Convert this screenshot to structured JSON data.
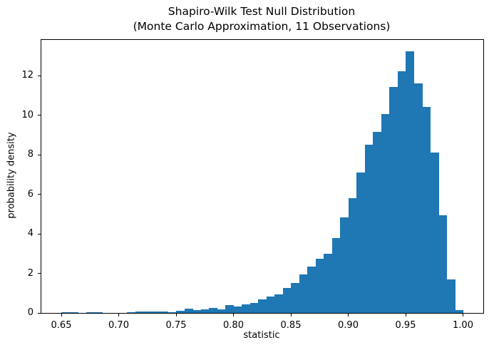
{
  "chart_data": {
    "type": "bar",
    "variant": "histogram",
    "title": "Shapiro-Wilk Test Null Distribution\n(Monte Carlo Approximation, 11 Observations)",
    "xlabel": "statistic",
    "ylabel": "probability density",
    "bar_color": "#1f77b4",
    "background_color": "#ffffff",
    "spine_color": "#000000",
    "grid": false,
    "bin_start": 0.65,
    "bin_width": 0.0071428,
    "bin_count": 49,
    "heights": [
      0.05,
      0.05,
      0,
      0.04,
      0.04,
      0,
      0,
      0,
      0.04,
      0.07,
      0.07,
      0.08,
      0.07,
      0.03,
      0.1,
      0.2,
      0.13,
      0.19,
      0.25,
      0.19,
      0.4,
      0.33,
      0.42,
      0.5,
      0.7,
      0.82,
      0.94,
      1.26,
      1.52,
      1.93,
      2.36,
      2.74,
      2.99,
      3.77,
      4.85,
      5.81,
      7.1,
      8.52,
      9.15,
      10.05,
      11.44,
      12.22,
      13.24,
      11.62,
      10.42,
      8.1,
      4.95,
      1.7,
      0.16
    ],
    "xlim": [
      0.6326,
      1.0177
    ],
    "ylim": [
      0,
      13.81
    ],
    "xticks": {
      "values": [
        0.65,
        0.7,
        0.75,
        0.8,
        0.85,
        0.9,
        0.95,
        1.0
      ],
      "labels": [
        "0.65",
        "0.70",
        "0.75",
        "0.80",
        "0.85",
        "0.90",
        "0.95",
        "1.00"
      ]
    },
    "yticks": {
      "values": [
        0,
        2,
        4,
        6,
        8,
        10,
        12
      ],
      "labels": [
        "0",
        "2",
        "4",
        "6",
        "8",
        "10",
        "12"
      ]
    }
  }
}
